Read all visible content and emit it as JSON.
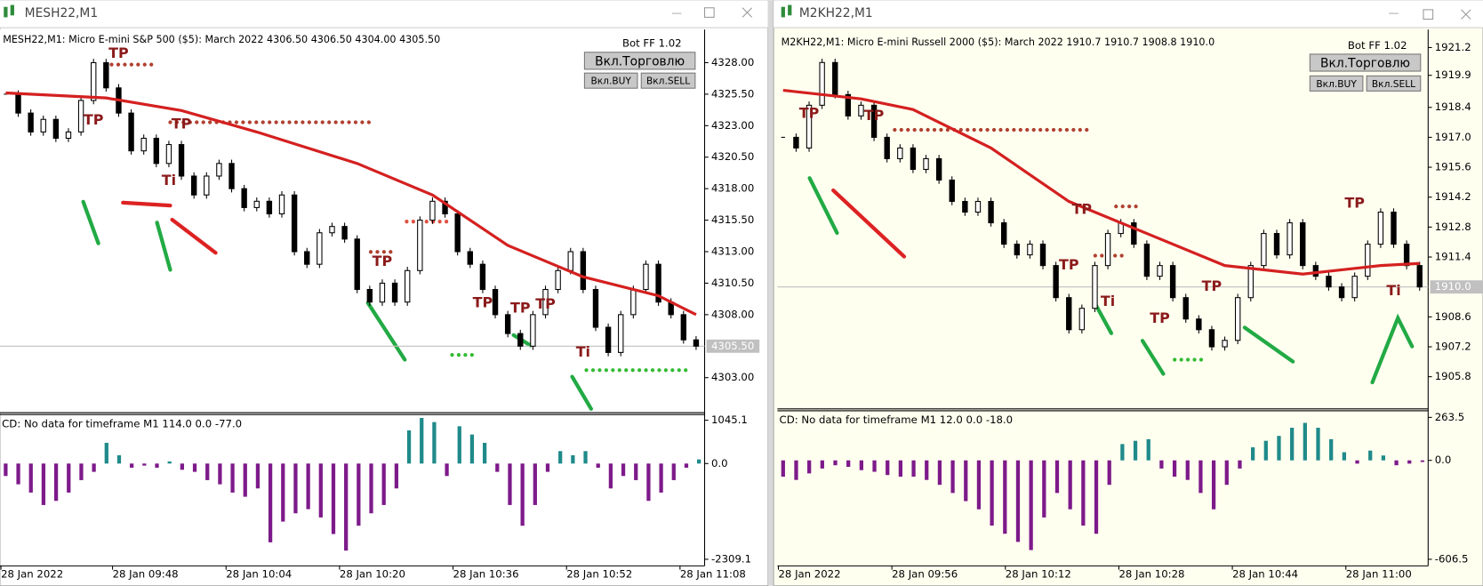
{
  "windows": [
    {
      "title": "MESH22,M1",
      "info": "MESH22,M1:  Micro E-mini S&P 500 ($5): March 2022  4306.50 4306.50 4304.00 4305.50",
      "bot": "Bot FF 1.02",
      "buttons": [
        "Вкл.Торговлю",
        "Вкл.BUY",
        "Вкл.SELL"
      ],
      "price_ticks": [
        {
          "value": 4328,
          "label": "4328.00"
        },
        {
          "value": 4325.5,
          "label": "4325.50"
        },
        {
          "value": 4323,
          "label": "4323.00"
        },
        {
          "value": 4320.5,
          "label": "4320.50"
        },
        {
          "value": 4318,
          "label": "4318.00"
        },
        {
          "value": 4315.5,
          "label": "4315.50"
        },
        {
          "value": 4313,
          "label": "4313.00"
        },
        {
          "value": 4310.5,
          "label": "4310.50"
        },
        {
          "value": 4308,
          "label": "4308.00"
        },
        {
          "value": 4303,
          "label": "4303.00"
        }
      ],
      "current": {
        "value": 4305.5,
        "label": "4305.50"
      },
      "close": [
        4325.5,
        4324,
        4322.5,
        4323.5,
        4322,
        4322.5,
        4325,
        4328,
        4326,
        4324,
        4321,
        4322,
        4320,
        4321.5,
        4319,
        4317.5,
        4319,
        4320,
        4318,
        4316.5,
        4317,
        4316,
        4317.5,
        4313,
        4312,
        4314.5,
        4315,
        4314,
        4310,
        4309,
        4310.5,
        4309,
        4311.5,
        4315.5,
        4317,
        4316,
        4313,
        4312,
        4310,
        4308,
        4306.5,
        4305.5,
        4308,
        4310,
        4311.5,
        4313,
        4310,
        4307,
        4305,
        4308,
        4310,
        4312,
        4309,
        4308,
        4306,
        4305.5
      ],
      "ma": {
        "color": "#d42020",
        "x": [
          0,
          8,
          14,
          20,
          28,
          34,
          40,
          46,
          52,
          55
        ],
        "values": [
          4325.6,
          4325.2,
          4324.2,
          4322.5,
          4320,
          4317.5,
          4313.5,
          4311,
          4309.5,
          4308
        ]
      },
      "annotations": [
        {
          "text": "TP",
          "i": 9,
          "p": 4328.7
        },
        {
          "text": "TP",
          "i": 7,
          "p": 4323.4
        },
        {
          "text": "TP",
          "i": 14,
          "p": 4323.1
        },
        {
          "text": "Ti",
          "i": 13,
          "p": 4318.6
        },
        {
          "text": "TP",
          "i": 30,
          "p": 4312.2
        },
        {
          "text": "TP",
          "i": 38,
          "p": 4308.9
        },
        {
          "text": "TP",
          "i": 41,
          "p": 4308.5
        },
        {
          "text": "TP",
          "i": 43,
          "p": 4308.8
        },
        {
          "text": "Ti",
          "i": 46,
          "p": 4305
        }
      ],
      "indicator": {
        "label": "CD: No data for timeframe M1 114.0 0.0 -77.0",
        "yticks": [
          1045.1,
          {
            "value": 0,
            "label": "0.0"
          },
          -2309.1
        ],
        "values": [
          -300,
          -500,
          -700,
          -1000,
          -900,
          -700,
          -400,
          -200,
          500,
          200,
          -100,
          -50,
          -100,
          50,
          -150,
          -200,
          -400,
          -500,
          -700,
          -800,
          -600,
          -1900,
          -1400,
          -1200,
          -1100,
          -1300,
          -1700,
          -2100,
          -1500,
          -1200,
          -1000,
          -600,
          800,
          1100,
          1000,
          -300,
          900,
          700,
          500,
          -200,
          -1000,
          -1500,
          -1000,
          -200,
          300,
          200,
          300,
          -100,
          -600,
          -300,
          -400,
          -900,
          -700,
          -400,
          -100,
          100
        ]
      },
      "time_labels": [
        "28 Jan 2022",
        "28 Jan 09:48",
        "28 Jan 10:04",
        "28 Jan 10:20",
        "28 Jan 10:36",
        "28 Jan 10:52",
        "28 Jan 11:08"
      ]
    },
    {
      "title": "M2KH22,M1",
      "info": "M2KH22,M1:  Micro E-mini Russell 2000 ($5): March 2022  1910.7 1910.7 1908.8 1910.0",
      "bot": "Bot FF 1.02",
      "buttons": [
        "Вкл.Торговлю",
        "Вкл.BUY",
        "Вкл.SELL"
      ],
      "price_ticks": [
        1921.2,
        1919.9,
        1918.4,
        {
          "value": 1917,
          "label": "1917.0"
        },
        1915.6,
        1914.2,
        1912.8,
        1911.4,
        1908.6,
        1907.2,
        1905.8
      ],
      "current": {
        "value": 1910,
        "label": "1910.0"
      },
      "close": [
        1917,
        1916.5,
        1918.5,
        1920.5,
        1919,
        1918,
        1918.5,
        1917,
        1916,
        1916.5,
        1915.5,
        1916,
        1915,
        1914,
        1913.5,
        1914,
        1913,
        1912,
        1911.5,
        1912,
        1911,
        1909.5,
        1908,
        1909,
        1911,
        1912.5,
        1913,
        1912,
        1910.5,
        1911,
        1909.5,
        1908.5,
        1908,
        1907.2,
        1907.5,
        1909.5,
        1911,
        1912.5,
        1911.5,
        1913,
        1911,
        1910.5,
        1910,
        1909.5,
        1910.5,
        1912,
        1913.5,
        1912,
        1911,
        1910
      ],
      "ma": {
        "color": "#d42020",
        "x": [
          0,
          6,
          10,
          16,
          22,
          28,
          34,
          40,
          46,
          49
        ],
        "values": [
          1919.2,
          1918.8,
          1918.3,
          1916.5,
          1914,
          1912.5,
          1911,
          1910.6,
          1911,
          1911.1
        ]
      },
      "annotations": [
        {
          "text": "TP",
          "i": 2,
          "p": 1918.1
        },
        {
          "text": "TP",
          "i": 7,
          "p": 1918
        },
        {
          "text": "TP",
          "i": 23,
          "p": 1913.6
        },
        {
          "text": "TP",
          "i": 22,
          "p": 1911
        },
        {
          "text": "Ti",
          "i": 25,
          "p": 1909.3
        },
        {
          "text": "TP",
          "i": 29,
          "p": 1908.5
        },
        {
          "text": "TP",
          "i": 33,
          "p": 1910
        },
        {
          "text": "TP",
          "i": 44,
          "p": 1913.9
        },
        {
          "text": "Ti",
          "i": 47,
          "p": 1909.8
        }
      ],
      "indicator": {
        "label": "CD: No data for timeframe M1 12.0 0.0 -18.0",
        "yticks": [
          263.5,
          {
            "value": 0,
            "label": "0.0"
          },
          -606.5
        ],
        "values": [
          -100,
          -120,
          -80,
          -50,
          -30,
          -40,
          -60,
          -70,
          -90,
          -100,
          -100,
          -120,
          -150,
          -200,
          -250,
          -300,
          -400,
          -450,
          -500,
          -550,
          -350,
          -200,
          -300,
          -400,
          -450,
          -150,
          100,
          120,
          130,
          -50,
          -100,
          -120,
          -200,
          -300,
          -150,
          -50,
          80,
          120,
          150,
          200,
          230,
          200,
          130,
          50,
          -20,
          60,
          30,
          -30,
          -20,
          -10
        ]
      },
      "time_labels": [
        "28 Jan 2022",
        "28 Jan 09:56",
        "28 Jan 10:12",
        "28 Jan 10:28",
        "28 Jan 10:44",
        "28 Jan 11:00"
      ]
    }
  ]
}
